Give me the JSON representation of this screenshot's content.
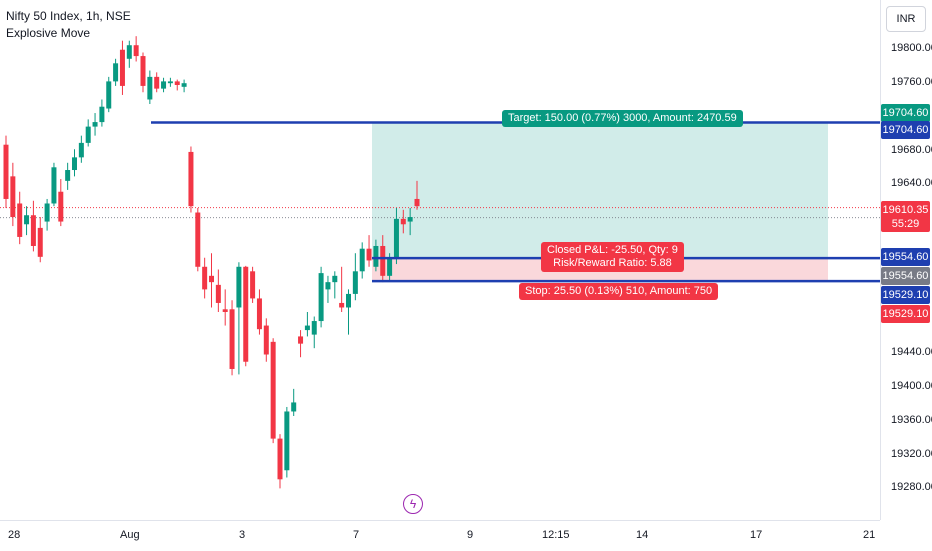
{
  "header": {
    "symbol_line": "Nifty 50 Index, 1h, NSE",
    "indicator": "Explosive Move"
  },
  "currency": "INR",
  "colors": {
    "up": "#089981",
    "down": "#f23645",
    "line": "#1e3fb0",
    "target_fill": "#b2dfdb",
    "stop_fill": "#f8c8cc",
    "last_price": "#f23645"
  },
  "price_axis": {
    "ticks": [
      "19800.00",
      "19760.00",
      "19680.00",
      "19640.00",
      "19440.00",
      "19400.00",
      "19360.00",
      "19320.00",
      "19280.00"
    ]
  },
  "time_axis": {
    "ticks": [
      "28",
      "Aug",
      "3",
      "7",
      "9",
      "12:15",
      "14",
      "17",
      "21"
    ]
  },
  "badges": {
    "target_top": "19704.60",
    "target_line": "19704.60",
    "last_price": "19610.35",
    "countdown": "55:29",
    "entry_line": "19554.60",
    "entry_gray": "19554.60",
    "stop_line": "19529.10",
    "stop_red": "19529.10"
  },
  "position": {
    "target_label": "Target: 150.00 (0.77%) 3000, Amount: 2470.59",
    "closed_pnl": "Closed P&L: -25.50, Qty: 9",
    "rr_ratio": "Risk/Reward Ratio: 5.88",
    "stop_label": "Stop: 25.50 (0.13%) 510, Amount: 750"
  },
  "chart_data": {
    "type": "candlestick",
    "symbol": "Nifty 50 Index",
    "interval": "1h",
    "ylim": [
      19265,
      19840
    ],
    "candles": [
      [
        19680,
        19690,
        19610,
        19620
      ],
      [
        19645,
        19660,
        19590,
        19600
      ],
      [
        19615,
        19628,
        19570,
        19578
      ],
      [
        19592,
        19612,
        19580,
        19602
      ],
      [
        19602,
        19618,
        19562,
        19568
      ],
      [
        19588,
        19600,
        19550,
        19556
      ],
      [
        19595,
        19620,
        19585,
        19615
      ],
      [
        19615,
        19660,
        19612,
        19655
      ],
      [
        19628,
        19642,
        19590,
        19595
      ],
      [
        19640,
        19660,
        19630,
        19652
      ],
      [
        19652,
        19675,
        19645,
        19666
      ],
      [
        19666,
        19690,
        19660,
        19682
      ],
      [
        19682,
        19708,
        19678,
        19700
      ],
      [
        19700,
        19715,
        19690,
        19705
      ],
      [
        19705,
        19730,
        19700,
        19722
      ],
      [
        19720,
        19755,
        19716,
        19750
      ],
      [
        19750,
        19775,
        19745,
        19770
      ],
      [
        19785,
        19795,
        19735,
        19745
      ],
      [
        19775,
        19795,
        19765,
        19790
      ],
      [
        19790,
        19800,
        19772,
        19778
      ],
      [
        19778,
        19782,
        19738,
        19745
      ],
      [
        19730,
        19762,
        19725,
        19755
      ],
      [
        19755,
        19760,
        19738,
        19742
      ],
      [
        19742,
        19754,
        19738,
        19750
      ],
      [
        19748,
        19754,
        19744,
        19750
      ],
      [
        19750,
        19752,
        19740,
        19746
      ],
      [
        19744,
        19752,
        19738,
        19748
      ],
      [
        19672,
        19678,
        19605,
        19612
      ],
      [
        19605,
        19610,
        19540,
        19545
      ],
      [
        19545,
        19555,
        19510,
        19520
      ],
      [
        19535,
        19560,
        19500,
        19528
      ],
      [
        19525,
        19542,
        19495,
        19505
      ],
      [
        19498,
        19520,
        19480,
        19495
      ],
      [
        19498,
        19508,
        19425,
        19432
      ],
      [
        19500,
        19550,
        19426,
        19545
      ],
      [
        19545,
        19546,
        19435,
        19440
      ],
      [
        19540,
        19545,
        19505,
        19510
      ],
      [
        19510,
        19520,
        19470,
        19476
      ],
      [
        19480,
        19488,
        19440,
        19448
      ],
      [
        19462,
        19466,
        19350,
        19355
      ],
      [
        19355,
        19360,
        19300,
        19310
      ],
      [
        19320,
        19390,
        19312,
        19385
      ],
      [
        19385,
        19410,
        19380,
        19395
      ],
      [
        19468,
        19475,
        19445,
        19460
      ],
      [
        19475,
        19495,
        19468,
        19480
      ],
      [
        19470,
        19490,
        19455,
        19485
      ],
      [
        19485,
        19545,
        19478,
        19538
      ],
      [
        19520,
        19535,
        19505,
        19528
      ],
      [
        19528,
        19540,
        19510,
        19535
      ],
      [
        19505,
        19545,
        19495,
        19500
      ],
      [
        19500,
        19520,
        19470,
        19515
      ],
      [
        19515,
        19560,
        19508,
        19540
      ],
      [
        19540,
        19572,
        19532,
        19565
      ],
      [
        19565,
        19580,
        19545,
        19552
      ],
      [
        19545,
        19575,
        19540,
        19568
      ],
      [
        19568,
        19580,
        19528,
        19535
      ],
      [
        19535,
        19560,
        19530,
        19555
      ],
      [
        19555,
        19610,
        19548,
        19598
      ],
      [
        19598,
        19608,
        19582,
        19592
      ],
      [
        19595,
        19610,
        19580,
        19600
      ],
      [
        19620,
        19640,
        19608,
        19612
      ]
    ],
    "target_price": 19704.6,
    "entry_price": 19554.6,
    "stop_price": 19529.1,
    "last_price": 19610.35
  }
}
